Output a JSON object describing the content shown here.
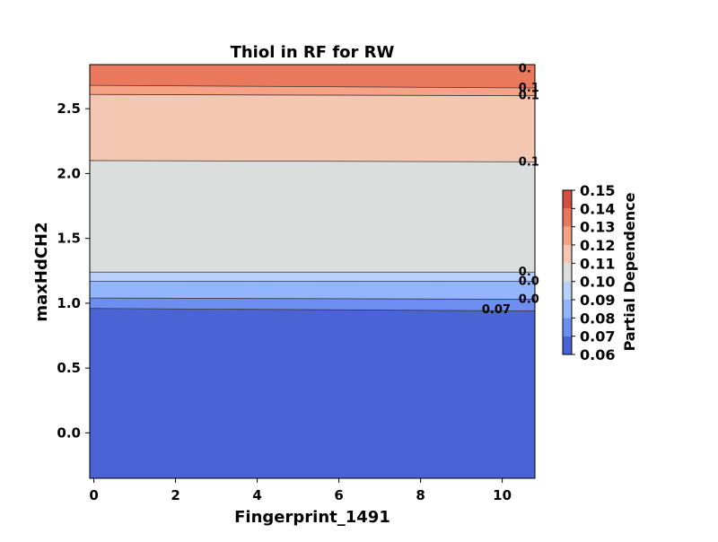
{
  "chart_data": {
    "type": "contour",
    "title": "Thiol in RF for RW",
    "xlabel": "Fingerprint_1491",
    "ylabel": "maxHdCH2",
    "xlim": [
      -0.1,
      10.8
    ],
    "ylim": [
      -0.35,
      2.84
    ],
    "x_ticks": [
      0,
      2,
      4,
      6,
      8,
      10
    ],
    "y_ticks": [
      0.0,
      0.5,
      1.0,
      1.5,
      2.0,
      2.5
    ],
    "grid": false,
    "colorbar": {
      "label": "Partial Dependence",
      "levels": [
        0.06,
        0.07,
        0.08,
        0.09,
        0.1,
        0.11,
        0.12,
        0.13,
        0.14,
        0.15
      ],
      "tick_labels": [
        "0.06",
        "0.07",
        "0.08",
        "0.09",
        "0.10",
        "0.11",
        "0.12",
        "0.13",
        "0.14",
        "0.15"
      ],
      "colors": [
        "#4a64d6",
        "#6b8ef0",
        "#93b5fe",
        "#b9d0f9",
        "#dcdddd",
        "#f3c7b1",
        "#f6a385",
        "#e9785d",
        "#d44e41"
      ]
    },
    "regions": [
      {
        "level_index": 0,
        "y_left_lo": -0.35,
        "y_right_lo": -0.35,
        "y_left_hi": 0.96,
        "y_right_hi": 0.94
      },
      {
        "level_index": 1,
        "y_left_lo": 0.96,
        "y_right_lo": 0.94,
        "y_left_hi": 1.04,
        "y_right_hi": 1.03
      },
      {
        "level_index": 2,
        "y_left_lo": 1.04,
        "y_right_lo": 1.03,
        "y_left_hi": 1.17,
        "y_right_hi": 1.17
      },
      {
        "level_index": 3,
        "y_left_lo": 1.17,
        "y_right_lo": 1.17,
        "y_left_hi": 1.24,
        "y_right_hi": 1.24
      },
      {
        "level_index": 4,
        "y_left_lo": 1.24,
        "y_right_lo": 1.24,
        "y_left_hi": 2.1,
        "y_right_hi": 2.09
      },
      {
        "level_index": 5,
        "y_left_lo": 2.1,
        "y_right_lo": 2.09,
        "y_left_hi": 2.61,
        "y_right_hi": 2.6
      },
      {
        "level_index": 6,
        "y_left_lo": 2.61,
        "y_right_lo": 2.6,
        "y_left_hi": 2.68,
        "y_right_hi": 2.66
      },
      {
        "level_index": 7,
        "y_left_lo": 2.68,
        "y_right_lo": 2.66,
        "y_left_hi": 2.84,
        "y_right_hi": 2.84
      }
    ],
    "contour_lines": [
      {
        "label": "0.07",
        "y_left": 0.96,
        "y_right": 0.94,
        "label_x": 9.5,
        "label_y": 0.95
      },
      {
        "label": "0.0",
        "y_left": 1.04,
        "y_right": 1.03,
        "label_x": 10.4,
        "label_y": 1.03
      },
      {
        "label": "0.0",
        "y_left": 1.17,
        "y_right": 1.17,
        "label_x": 10.4,
        "label_y": 1.17
      },
      {
        "label": "0.",
        "y_left": 1.24,
        "y_right": 1.24,
        "label_x": 10.4,
        "label_y": 1.24
      },
      {
        "label": "0.1",
        "y_left": 2.1,
        "y_right": 2.09,
        "label_x": 10.4,
        "label_y": 2.09
      },
      {
        "label": "0.1",
        "y_left": 2.61,
        "y_right": 2.6,
        "label_x": 10.4,
        "label_y": 2.6
      },
      {
        "label": "0.1",
        "y_left": 2.68,
        "y_right": 2.66,
        "label_x": 10.4,
        "label_y": 2.66
      },
      {
        "label": "0.",
        "y_left": 2.84,
        "y_right": 2.84,
        "label_x": 10.4,
        "label_y": 2.81
      }
    ]
  }
}
